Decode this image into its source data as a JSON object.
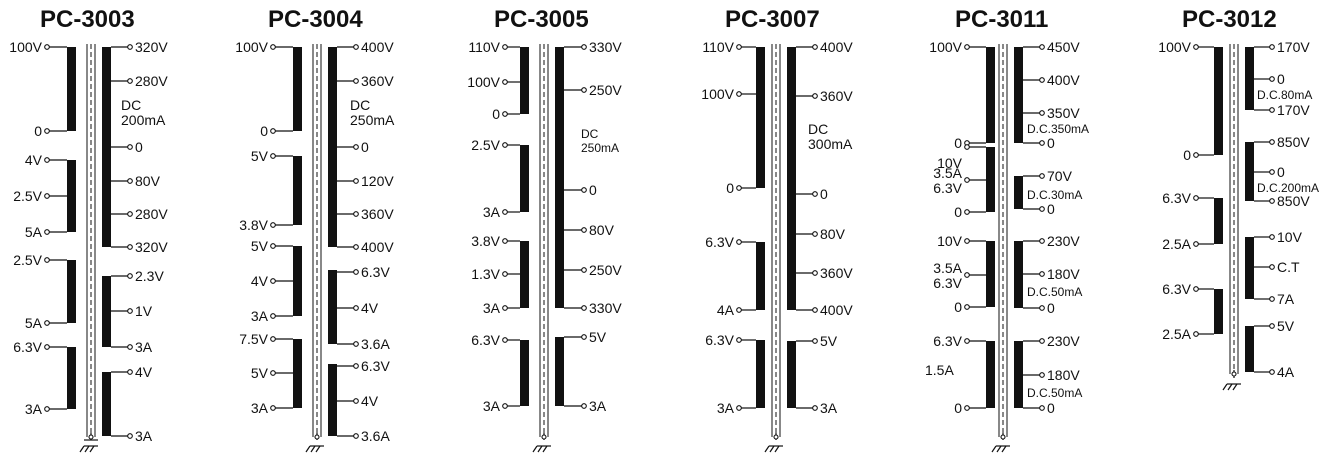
{
  "transformers": [
    {
      "model": "PC-3003",
      "left": [
        "100V",
        "0",
        "4V",
        "2.5V",
        "5A",
        "2.5V",
        "5A",
        "6.3V",
        "3A"
      ],
      "right": [
        "320V",
        "280V",
        "0",
        "80V",
        "280V",
        "320V",
        "2.3V",
        "1V",
        "3A",
        "4V",
        "3A"
      ],
      "dc": [
        "DC",
        "200mA"
      ]
    },
    {
      "model": "PC-3004",
      "left": [
        "100V",
        "0",
        "5V",
        "3.8V",
        "5V",
        "4V",
        "3A",
        "7.5V",
        "5V",
        "3A"
      ],
      "right": [
        "400V",
        "360V",
        "0",
        "120V",
        "360V",
        "400V",
        "6.3V",
        "4V",
        "3.6A",
        "6.3V",
        "4V",
        "3.6A"
      ],
      "dc": [
        "DC",
        "250mA"
      ]
    },
    {
      "model": "PC-3005",
      "left": [
        "110V",
        "100V",
        "0",
        "2.5V",
        "3A",
        "3.8V",
        "1.3V",
        "3A",
        "6.3V",
        "3A"
      ],
      "right": [
        "330V",
        "250V",
        "0",
        "80V",
        "250V",
        "330V",
        "5V",
        "3A"
      ],
      "dc": [
        "DC",
        "250mA"
      ]
    },
    {
      "model": "PC-3007",
      "left": [
        "110V",
        "100V",
        "0",
        "6.3V",
        "4A",
        "6.3V",
        "3A"
      ],
      "right": [
        "400V",
        "360V",
        "0",
        "80V",
        "360V",
        "400V",
        "5V",
        "3A"
      ],
      "dc": [
        "DC",
        "300mA"
      ]
    },
    {
      "model": "PC-3011",
      "left": [
        "100V",
        "0",
        "10V",
        "3.5A",
        "6.3V",
        "0",
        "10V",
        "3.5A",
        "6.3V",
        "0",
        "6.3V",
        "1.5A",
        "0"
      ],
      "right": [
        "450V",
        "400V",
        "350V",
        "D.C.350mA",
        "0",
        "70V",
        "D.C.30mA",
        "0",
        "230V",
        "180V",
        "D.C.50mA",
        "0",
        "230V",
        "180V",
        "D.C.50mA",
        "0"
      ]
    },
    {
      "model": "PC-3012",
      "left": [
        "100V",
        "0",
        "6.3V",
        "2.5A",
        "6.3V",
        "2.5A"
      ],
      "right": [
        "170V",
        "0",
        "D.C.80mA",
        "170V",
        "850V",
        "0",
        "D.C.200mA",
        "850V",
        "10V",
        "C.T",
        "7A",
        "5V",
        "4A"
      ]
    }
  ]
}
